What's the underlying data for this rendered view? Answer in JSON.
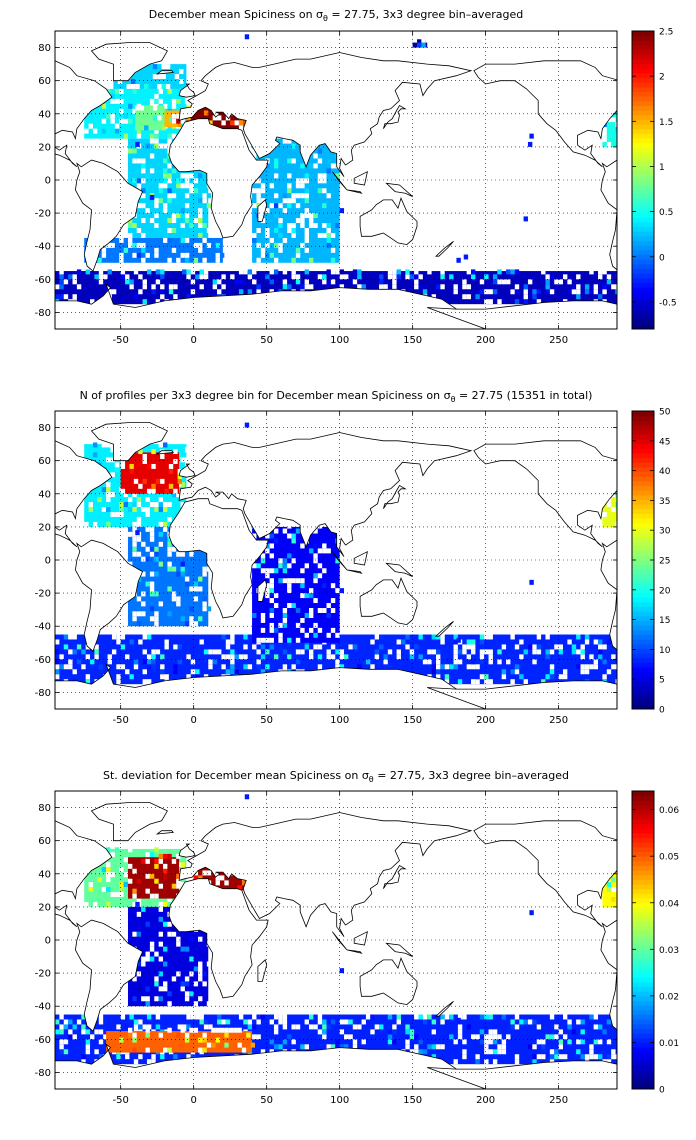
{
  "panels": [
    {
      "title_main": "December mean Spiciness on ",
      "title_sigma": "σ",
      "title_sub": "θ",
      "title_rest": " = 27.75, 3x3 degree bin–averaged",
      "colorbar": {
        "min": -0.8,
        "max": 2.5,
        "ticks": [
          "-0.5",
          "0",
          "0.5",
          "1",
          "1.5",
          "2",
          "2.5"
        ],
        "tick_values": [
          -0.5,
          0,
          0.5,
          1,
          1.5,
          2,
          2.5
        ]
      }
    },
    {
      "title_main": "N of profiles per 3x3 degree bin for December mean Spiciness on ",
      "title_sigma": "σ",
      "title_sub": "θ",
      "title_rest": " = 27.75 (15351 in total)",
      "colorbar": {
        "min": 0,
        "max": 50,
        "ticks": [
          "0",
          "5",
          "10",
          "15",
          "20",
          "25",
          "30",
          "35",
          "40",
          "45",
          "50"
        ],
        "tick_values": [
          0,
          5,
          10,
          15,
          20,
          25,
          30,
          35,
          40,
          45,
          50
        ]
      }
    },
    {
      "title_main": "St. deviation for December mean Spiciness on ",
      "title_sigma": "σ",
      "title_sub": "θ",
      "title_rest": " = 27.75, 3x3 degree bin–averaged",
      "colorbar": {
        "min": 0,
        "max": 0.064,
        "ticks": [
          "0",
          "0.01",
          "0.02",
          "0.03",
          "0.04",
          "0.05",
          "0.06"
        ],
        "tick_values": [
          0,
          0.01,
          0.02,
          0.03,
          0.04,
          0.05,
          0.06
        ]
      }
    }
  ],
  "chart_data": [
    {
      "type": "heatmap",
      "title": "December mean Spiciness on σθ = 27.75, 3x3 degree bin-averaged",
      "xlim": [
        -95,
        290
      ],
      "ylim": [
        -90,
        90
      ],
      "xticks": [
        "-50",
        "0",
        "50",
        "100",
        "150",
        "200",
        "250"
      ],
      "xtick_values": [
        -50,
        0,
        50,
        100,
        150,
        200,
        250
      ],
      "yticks": [
        "80",
        "60",
        "40",
        "20",
        "0",
        "-20",
        "-40",
        "-60",
        "-80"
      ],
      "ytick_values": [
        80,
        60,
        40,
        20,
        0,
        -20,
        -40,
        -60,
        -80
      ],
      "grid": true,
      "colormap": "jet",
      "bins": [
        {
          "x": [
            -75,
            -5
          ],
          "y": [
            25,
            55
          ],
          "value": 0.4
        },
        {
          "x": [
            -40,
            -20
          ],
          "y": [
            30,
            45
          ],
          "value": 0.8
        },
        {
          "x": [
            -20,
            -10
          ],
          "y": [
            32,
            42
          ],
          "value": 1.5
        },
        {
          "x": [
            -15,
            -8
          ],
          "y": [
            34,
            40
          ],
          "value": 2.3
        },
        {
          "x": [
            -55,
            -5
          ],
          "y": [
            55,
            70
          ],
          "value": 0.3
        },
        {
          "x": [
            -5,
            35
          ],
          "y": [
            30,
            45
          ],
          "value": 2.5
        },
        {
          "x": [
            -45,
            10
          ],
          "y": [
            -35,
            25
          ],
          "value": 0.3
        },
        {
          "x": [
            -75,
            20
          ],
          "y": [
            -50,
            -35
          ],
          "value": 0.0
        },
        {
          "x": [
            -95,
            290
          ],
          "y": [
            -75,
            -55
          ],
          "value": -0.6
        },
        {
          "x": [
            40,
            100
          ],
          "y": [
            -50,
            25
          ],
          "value": 0.2
        },
        {
          "x": [
            280,
            290
          ],
          "y": [
            20,
            45
          ],
          "value": 0.5
        },
        {
          "x": [
            150,
            160
          ],
          "y": [
            80,
            85
          ],
          "value": -0.7
        }
      ]
    },
    {
      "type": "heatmap",
      "title": "N of profiles per 3x3 degree bin for December mean Spiciness on σθ = 27.75 (15351 in total)",
      "xlim": [
        -95,
        290
      ],
      "ylim": [
        -90,
        90
      ],
      "xticks": [
        "-50",
        "0",
        "50",
        "100",
        "150",
        "200",
        "250"
      ],
      "xtick_values": [
        -50,
        0,
        50,
        100,
        150,
        200,
        250
      ],
      "yticks": [
        "80",
        "60",
        "40",
        "20",
        "0",
        "-20",
        "-40",
        "-60",
        "-80"
      ],
      "ytick_values": [
        80,
        60,
        40,
        20,
        0,
        -20,
        -40,
        -60,
        -80
      ],
      "grid": true,
      "colormap": "jet",
      "total_profiles": 15351,
      "bins": [
        {
          "x": [
            -75,
            -5
          ],
          "y": [
            20,
            70
          ],
          "value": 18
        },
        {
          "x": [
            -50,
            -10
          ],
          "y": [
            40,
            65
          ],
          "value": 45
        },
        {
          "x": [
            -45,
            10
          ],
          "y": [
            -40,
            20
          ],
          "value": 12
        },
        {
          "x": [
            -95,
            290
          ],
          "y": [
            -75,
            -45
          ],
          "value": 8
        },
        {
          "x": [
            40,
            100
          ],
          "y": [
            -50,
            20
          ],
          "value": 6
        },
        {
          "x": [
            280,
            290
          ],
          "y": [
            20,
            45
          ],
          "value": 30
        }
      ]
    },
    {
      "type": "heatmap",
      "title": "St. deviation for December mean Spiciness on σθ = 27.75, 3x3 degree bin-averaged",
      "xlim": [
        -95,
        290
      ],
      "ylim": [
        -90,
        90
      ],
      "xticks": [
        "-50",
        "0",
        "50",
        "100",
        "150",
        "200",
        "250"
      ],
      "xtick_values": [
        -50,
        0,
        50,
        100,
        150,
        200,
        250
      ],
      "yticks": [
        "80",
        "60",
        "40",
        "20",
        "0",
        "-20",
        "-40",
        "-60",
        "-80"
      ],
      "ytick_values": [
        80,
        60,
        40,
        20,
        0,
        -20,
        -40,
        -60,
        -80
      ],
      "grid": true,
      "colormap": "jet",
      "bins": [
        {
          "x": [
            -75,
            -5
          ],
          "y": [
            20,
            55
          ],
          "value": 0.03
        },
        {
          "x": [
            -45,
            -10
          ],
          "y": [
            25,
            50
          ],
          "value": 0.062
        },
        {
          "x": [
            0,
            35
          ],
          "y": [
            30,
            45
          ],
          "value": 0.062
        },
        {
          "x": [
            -45,
            10
          ],
          "y": [
            -40,
            20
          ],
          "value": 0.006
        },
        {
          "x": [
            -95,
            290
          ],
          "y": [
            -75,
            -45
          ],
          "value": 0.01
        },
        {
          "x": [
            -60,
            40
          ],
          "y": [
            -68,
            -55
          ],
          "value": 0.05
        },
        {
          "x": [
            280,
            290
          ],
          "y": [
            20,
            45
          ],
          "value": 0.04
        }
      ]
    }
  ]
}
